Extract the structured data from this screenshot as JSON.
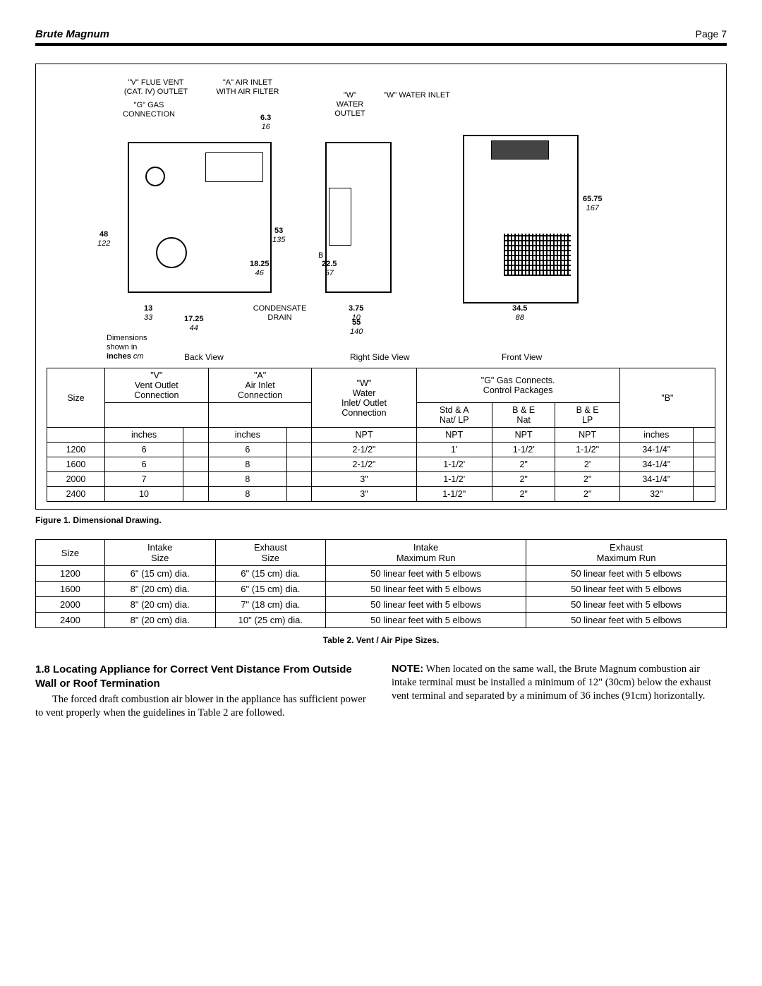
{
  "header": {
    "left": "Brute Magnum",
    "right": "Page 7"
  },
  "diagram": {
    "labels": {
      "v_flue": "\"V\" FLUE VENT\n(CAT. IV) OUTLET",
      "g_gas": "\"G\" GAS\nCONNECTION",
      "a_air": "\"A\" AIR INLET\nWITH AIR FILTER",
      "w_outlet": "\"W\"\nWATER\nOUTLET",
      "w_inlet": "\"W\" WATER INLET",
      "condensate": "CONDENSATE\nDRAIN",
      "b": "B"
    },
    "dims": {
      "d48": {
        "in": "48",
        "cm": "122"
      },
      "d13": {
        "in": "13",
        "cm": "33"
      },
      "d1725": {
        "in": "17.25",
        "cm": "44"
      },
      "d63": {
        "in": "6.3",
        "cm": "16"
      },
      "d53": {
        "in": "53",
        "cm": "135"
      },
      "d1825": {
        "in": "18.25",
        "cm": "46"
      },
      "d225": {
        "in": "22.5",
        "cm": "57"
      },
      "d375": {
        "in": "3.75",
        "cm": "10"
      },
      "d55": {
        "in": "55",
        "cm": "140"
      },
      "d6575": {
        "in": "65.75",
        "cm": "167"
      },
      "d345": {
        "in": "34.5",
        "cm": "88"
      }
    },
    "note": {
      "l1": "Dimensions",
      "l2": "shown in",
      "l3in": "inches",
      "l3cm": " cm"
    },
    "views": {
      "back": "Back View",
      "right": "Right Side View",
      "front": "Front View"
    }
  },
  "table1": {
    "head": {
      "size": "Size",
      "v": "\"V\"\nVent Outlet\nConnection",
      "a": "\"A\"\nAir Inlet\nConnection",
      "w": "\"W\"\nWater\nInlet/ Outlet\nConnection",
      "g_group": "\"G\" Gas Connects.\nControl Packages",
      "g1": "Std & A\nNat/ LP",
      "g2": "B & E\nNat",
      "g3": "B & E\nLP",
      "b": "\"B\""
    },
    "units": {
      "inches": "inches",
      "npt": "NPT"
    },
    "rows": [
      [
        "1200",
        "6",
        "",
        "6",
        "",
        "2-1/2\"",
        "1'",
        "1-1/2'",
        "1-1/2\"",
        "34-1/4\"",
        ""
      ],
      [
        "1600",
        "6",
        "",
        "8",
        "",
        "2-1/2\"",
        "1-1/2'",
        "2\"",
        "2'",
        "34-1/4\"",
        ""
      ],
      [
        "2000",
        "7",
        "",
        "8",
        "",
        "3\"",
        "1-1/2'",
        "2\"",
        "2\"",
        "34-1/4\"",
        ""
      ],
      [
        "2400",
        "10",
        "",
        "8",
        "",
        "3\"",
        "1-1/2\"",
        "2\"",
        "2\"",
        "32\"",
        ""
      ]
    ]
  },
  "fig1_caption": "Figure 1. Dimensional Drawing.",
  "table2": {
    "head": {
      "size": "Size",
      "intake_size": "Intake\nSize",
      "exhaust_size": "Exhaust\nSize",
      "intake_max": "Intake\nMaximum Run",
      "exhaust_max": "Exhaust\nMaximum Run"
    },
    "rows": [
      [
        "1200",
        "6\" (15 cm) dia.",
        "6\" (15 cm) dia.",
        "50 linear feet with 5 elbows",
        "50 linear feet with 5 elbows"
      ],
      [
        "1600",
        "8\" (20 cm) dia.",
        "6\" (15 cm) dia.",
        "50 linear feet with 5 elbows",
        "50 linear feet with 5 elbows"
      ],
      [
        "2000",
        "8\" (20 cm) dia.",
        "7\" (18 cm) dia.",
        "50 linear feet with 5 elbows",
        "50 linear feet with 5 elbows"
      ],
      [
        "2400",
        "8\" (20 cm) dia.",
        "10\" (25 cm) dia.",
        "50 linear feet with 5 elbows",
        "50 linear feet with 5 elbows"
      ]
    ]
  },
  "table2_caption": "Table 2. Vent / Air Pipe Sizes.",
  "section": {
    "heading": "1.8  Locating Appliance for Correct Vent Distance From Outside Wall or Roof Termination",
    "p1": "The forced draft combustion air blower in the appliance has sufficient power to vent properly when the guidelines in Table 2 are followed.",
    "note_label": "NOTE:",
    "note_body": " When located on the same wall, the Brute Magnum combustion air intake terminal must be installed a minimum of 12\" (30cm) below the exhaust vent terminal and separated by a minimum of 36 inches (91cm) horizontally."
  }
}
